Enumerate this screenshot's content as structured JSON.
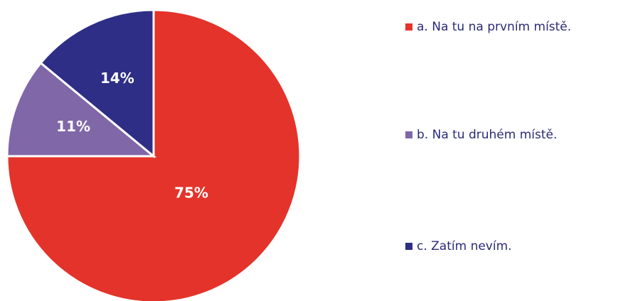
{
  "chart_data": {
    "type": "pie",
    "categories": [
      "a. Na tu na prvním místě.",
      "b. Na tu druhém místě.",
      "c. Zatím nevím."
    ],
    "values": [
      75,
      11,
      14
    ],
    "value_labels": [
      "75%",
      "11%",
      "14%"
    ],
    "colors": [
      "#e4332a",
      "#8067a8",
      "#2e2e86"
    ],
    "legend": "right"
  }
}
